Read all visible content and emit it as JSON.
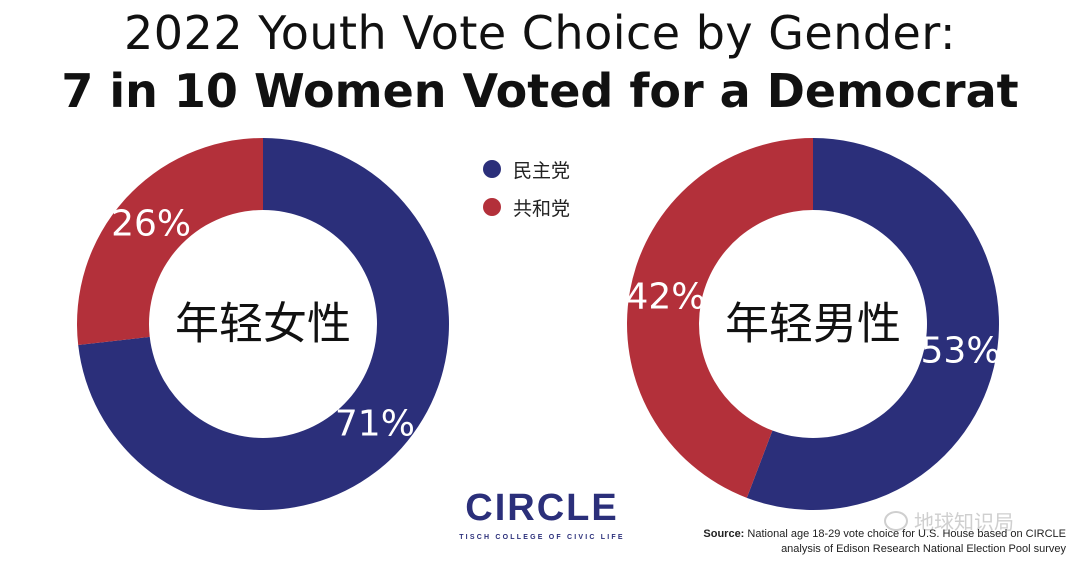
{
  "header": {
    "title_line1": "2022 Youth Vote Choice by Gender:",
    "title_line2": "7 in 10 Women Voted for a Democrat"
  },
  "legend": [
    {
      "label": "民主党",
      "color": "#2b2f7a"
    },
    {
      "label": "共和党",
      "color": "#b3303a"
    }
  ],
  "chart_data": [
    {
      "type": "pie",
      "center_label": "年轻女性",
      "slices": [
        {
          "name": "民主党",
          "value": 71,
          "label": "71%"
        },
        {
          "name": "共和党",
          "value": 26,
          "label": "26%"
        }
      ]
    },
    {
      "type": "pie",
      "center_label": "年轻男性",
      "slices": [
        {
          "name": "民主党",
          "value": 53,
          "label": "53%"
        },
        {
          "name": "共和党",
          "value": 42,
          "label": "42%"
        }
      ]
    }
  ],
  "logo": {
    "text": "CIRCLE",
    "subtitle": "TISCH COLLEGE OF CIVIC LIFE"
  },
  "source": {
    "label": "Source:",
    "text": "National age 18-29 vote choice for U.S. House based on CIRCLE analysis of Edison Research National Election Pool survey"
  },
  "watermark": "地球知识局"
}
